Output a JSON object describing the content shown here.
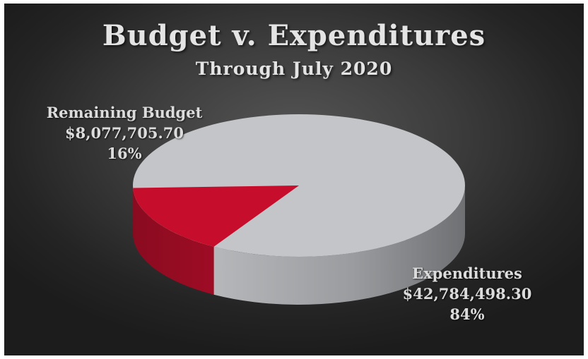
{
  "chart_data": {
    "type": "pie",
    "title": "Budget v. Expenditures",
    "subtitle": "Through July 2020",
    "slices": [
      {
        "name": "Expenditures",
        "amount": "$42,784,498.30",
        "value": 42784498.3,
        "percent": "84%",
        "color": "#c3c5c8"
      },
      {
        "name": "Remaining Budget",
        "amount": "$8,077,705.70",
        "value": 8077705.7,
        "percent": "16%",
        "color": "#c60d2b"
      }
    ],
    "style": "3d",
    "background": "#2e2e2e"
  }
}
